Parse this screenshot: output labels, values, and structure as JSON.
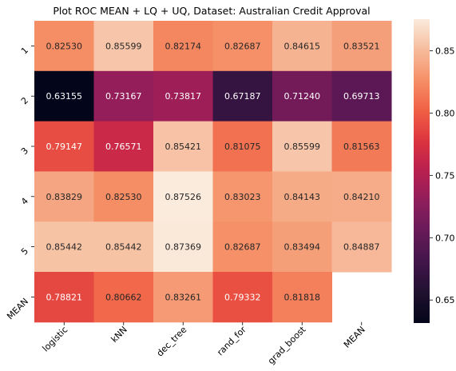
{
  "chart_data": {
    "type": "heatmap",
    "title": "Plot ROC MEAN + LQ + UQ, Dataset: Australian Credit Approval",
    "xlabel": "",
    "ylabel": "",
    "x_categories": [
      "logistic",
      "kNN",
      "dec_tree",
      "rand_for",
      "grad_boost",
      "MEAN"
    ],
    "y_categories": [
      "1",
      "2",
      "3",
      "4",
      "5",
      "MEAN"
    ],
    "values": [
      [
        0.8253,
        0.85599,
        0.82174,
        0.82687,
        0.84615,
        0.83521
      ],
      [
        0.63155,
        0.73167,
        0.73817,
        0.67187,
        0.7124,
        0.69713
      ],
      [
        0.79147,
        0.76571,
        0.85421,
        0.81075,
        0.85599,
        0.81563
      ],
      [
        0.83829,
        0.8253,
        0.87526,
        0.83023,
        0.84143,
        0.8421
      ],
      [
        0.85442,
        0.85442,
        0.87369,
        0.82687,
        0.83494,
        0.84887
      ],
      [
        0.78821,
        0.80662,
        0.83261,
        0.79332,
        0.81818,
        null
      ]
    ],
    "labels": [
      [
        "0.82530",
        "0.85599",
        "0.82174",
        "0.82687",
        "0.84615",
        "0.83521"
      ],
      [
        "0.63155",
        "0.73167",
        "0.73817",
        "0.67187",
        "0.71240",
        "0.69713"
      ],
      [
        "0.79147",
        "0.76571",
        "0.85421",
        "0.81075",
        "0.85599",
        "0.81563"
      ],
      [
        "0.83829",
        "0.82530",
        "0.87526",
        "0.83023",
        "0.84143",
        "0.84210"
      ],
      [
        "0.85442",
        "0.85442",
        "0.87369",
        "0.82687",
        "0.83494",
        "0.84887"
      ],
      [
        "0.78821",
        "0.80662",
        "0.83261",
        "0.79332",
        "0.81818",
        ""
      ]
    ],
    "colormap": "rocket",
    "vmin": 0.63155,
    "vmax": 0.87526,
    "colorbar": {
      "ticks": [
        0.65,
        0.7,
        0.75,
        0.8,
        0.85
      ],
      "tick_labels": [
        "0.65",
        "0.70",
        "0.75",
        "0.80",
        "0.85"
      ]
    },
    "grid": false,
    "legend": "colorbar-right",
    "colors": {
      "text_dark": "#262626",
      "text_light": "#ffffff",
      "background": "#ffffff"
    }
  }
}
